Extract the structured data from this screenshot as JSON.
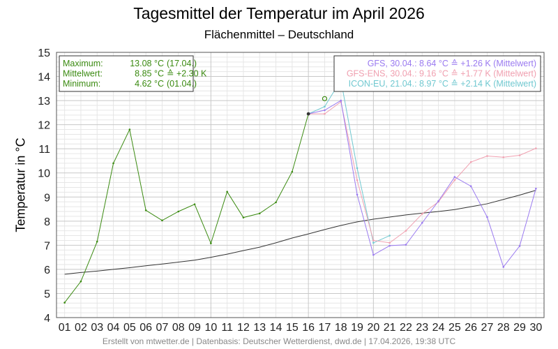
{
  "chart_data": {
    "type": "line",
    "title": "Tagesmittel der Temperatur im April 2026",
    "subtitle": "Flächenmittel – Deutschland",
    "ylabel": "Temperatur in °C",
    "ylim": [
      4,
      15
    ],
    "yticks": [
      "4",
      "5",
      "6",
      "7",
      "8",
      "9",
      "10",
      "11",
      "12",
      "13",
      "14",
      "15"
    ],
    "xlim": [
      1,
      30
    ],
    "xticks": [
      "01",
      "02",
      "03",
      "04",
      "05",
      "06",
      "07",
      "08",
      "09",
      "10",
      "11",
      "12",
      "13",
      "14",
      "15",
      "16",
      "17",
      "18",
      "19",
      "20",
      "21",
      "22",
      "23",
      "24",
      "25",
      "26",
      "27",
      "28",
      "29",
      "30"
    ],
    "grid": true,
    "colors": {
      "observed": "#3a8a10",
      "climate": "#333333",
      "gfs": "#9a7af0",
      "gfsens": "#f0a0b0",
      "icon": "#70c8d0",
      "grid_major": "#c8c8c8",
      "grid_minor": "#e6e6e6"
    },
    "stats_box": {
      "position": "top-left",
      "lines": [
        {
          "label": "Maximum:",
          "value": "13.08 °C",
          "extra": "(17.04.)"
        },
        {
          "label": "Mittelwert:",
          "value": "8.85 °C",
          "extra": "≙ +2.30 K"
        },
        {
          "label": "Minimum:",
          "value": "4.62 °C",
          "extra": "(01.04.)"
        }
      ]
    },
    "forecast_box": {
      "position": "top-right",
      "lines": [
        {
          "text": "GFS, 30.04.: 8.64 °C ≙ +1.26 K (Mittelwert)",
          "color": "#9a7af0"
        },
        {
          "text": "GFS-ENS, 30.04.: 9.16 °C ≙ +1.77 K (Mittelwert)",
          "color": "#f0a0b0"
        },
        {
          "text": "ICON-EU, 21.04.: 8.97 °C ≙ +2.14 K (Mittelwert)",
          "color": "#70c8d0"
        }
      ]
    },
    "series": [
      {
        "key": "observed",
        "x": [
          1,
          2,
          3,
          4,
          5,
          6,
          7,
          8,
          9,
          10,
          11,
          12,
          13,
          14,
          15,
          16
        ],
        "y": [
          4.62,
          5.5,
          7.15,
          10.4,
          11.8,
          8.45,
          8.03,
          8.4,
          8.7,
          7.08,
          9.22,
          8.15,
          8.32,
          8.78,
          10.05,
          12.45
        ]
      },
      {
        "key": "observed_max_marker",
        "x": [
          17
        ],
        "y": [
          13.08
        ]
      },
      {
        "key": "climate",
        "x": [
          1,
          2,
          3,
          4,
          5,
          6,
          7,
          8,
          9,
          10,
          11,
          12,
          13,
          14,
          15,
          16,
          17,
          18,
          19,
          20,
          21,
          22,
          23,
          24,
          25,
          26,
          27,
          28,
          29,
          30
        ],
        "y": [
          5.8,
          5.87,
          5.93,
          6.0,
          6.07,
          6.15,
          6.22,
          6.3,
          6.38,
          6.5,
          6.63,
          6.78,
          6.92,
          7.1,
          7.3,
          7.47,
          7.65,
          7.82,
          7.97,
          8.08,
          8.17,
          8.26,
          8.33,
          8.4,
          8.48,
          8.6,
          8.72,
          8.9,
          9.08,
          9.28
        ]
      },
      {
        "key": "icon",
        "x": [
          16,
          17,
          18,
          19,
          20,
          21
        ],
        "y": [
          12.45,
          12.75,
          13.85,
          10.2,
          7.1,
          7.4
        ]
      },
      {
        "key": "gfsens",
        "x": [
          16,
          17,
          18,
          19,
          20,
          21,
          22,
          23,
          24,
          25,
          26,
          27,
          28,
          29,
          30
        ],
        "y": [
          12.45,
          12.45,
          12.95,
          9.7,
          7.2,
          7.1,
          7.6,
          8.3,
          8.8,
          9.7,
          10.45,
          10.7,
          10.65,
          10.73,
          11.02
        ]
      },
      {
        "key": "gfs",
        "x": [
          16,
          17,
          18,
          19,
          20,
          21,
          22,
          23,
          24,
          25,
          26,
          27,
          28,
          29,
          30
        ],
        "y": [
          12.45,
          12.6,
          13.0,
          9.1,
          6.6,
          6.98,
          7.02,
          7.93,
          8.83,
          9.83,
          9.45,
          8.17,
          6.1,
          6.97,
          9.35
        ]
      }
    ]
  },
  "footer": "Erstellt von mtwetter.de | Datenbasis: Deutscher Wetterdienst, dwd.de | 17.04.2026, 19:38 UTC"
}
